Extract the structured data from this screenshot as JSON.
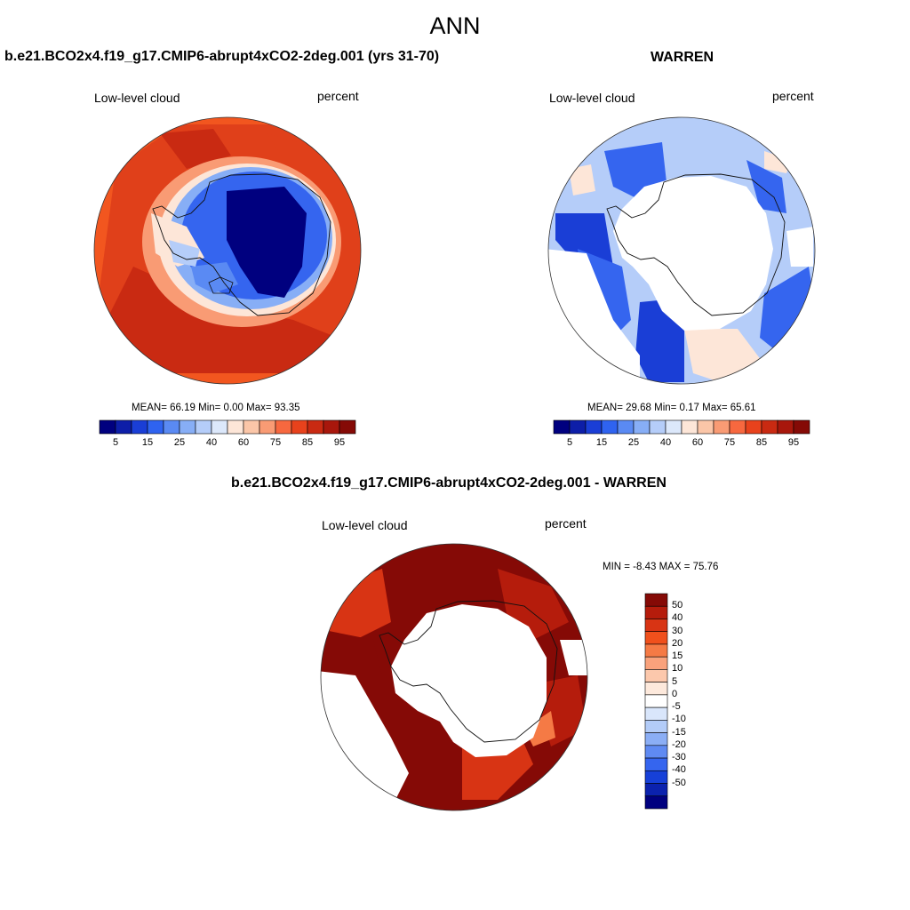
{
  "figure": {
    "title": "ANN"
  },
  "panels": [
    {
      "title": "b.e21.BCO2x4.f19_g17.CMIP6-abrupt4xCO2-2deg.001 (yrs 31-70)",
      "left_label": "Low-level cloud",
      "right_label": "percent",
      "stats": "MEAN=  66.19  Min=   0.00  Max=  93.35",
      "colorbar_ticks": [
        "5",
        "15",
        "25",
        "40",
        "60",
        "75",
        "85",
        "95"
      ]
    },
    {
      "title": "WARREN",
      "left_label": "Low-level cloud",
      "right_label": "percent",
      "stats": "MEAN=  29.68  Min=   0.17  Max=  65.61",
      "colorbar_ticks": [
        "5",
        "15",
        "25",
        "40",
        "60",
        "75",
        "85",
        "95"
      ]
    },
    {
      "title": "b.e21.BCO2x4.f19_g17.CMIP6-abrupt4xCO2-2deg.001 - WARREN",
      "left_label": "Low-level cloud",
      "right_label": "percent",
      "stats": "MIN =  -8.43 MAX =  75.76",
      "colorbar_ticks": [
        "50",
        "40",
        "30",
        "20",
        "15",
        "10",
        "5",
        "0",
        "-5",
        "-10",
        "-15",
        "-20",
        "-30",
        "-40",
        "-50"
      ]
    }
  ],
  "colors": {
    "abs_scale": [
      "#00007f",
      "#0d1ea8",
      "#1a3ed6",
      "#2f63f0",
      "#5a8af3",
      "#87aef6",
      "#b5cdf9",
      "#dce8fb",
      "#fde6d8",
      "#fbc6a8",
      "#f99b74",
      "#f7683f",
      "#e8421c",
      "#c92a12",
      "#a8170c",
      "#850a06"
    ],
    "diff_scale": [
      "#850a06",
      "#b51c0c",
      "#d83414",
      "#f0501c",
      "#f57a45",
      "#f9a27c",
      "#fcc8ac",
      "#fde9dc",
      "#ffffff",
      "#d9e6fb",
      "#b3ccf8",
      "#8baef5",
      "#5f8af2",
      "#3565ef",
      "#1640d8",
      "#0b22ae",
      "#00007f"
    ]
  },
  "map_data": {
    "panel1_mean_low_cloud_pct": 66.19,
    "panel1_min_pct": 0.0,
    "panel1_max_pct": 93.35,
    "panel2_mean_low_cloud_pct": 29.68,
    "panel2_min_pct": 0.17,
    "panel2_max_pct": 65.61,
    "diff_min": -8.43,
    "diff_max": 75.76
  }
}
